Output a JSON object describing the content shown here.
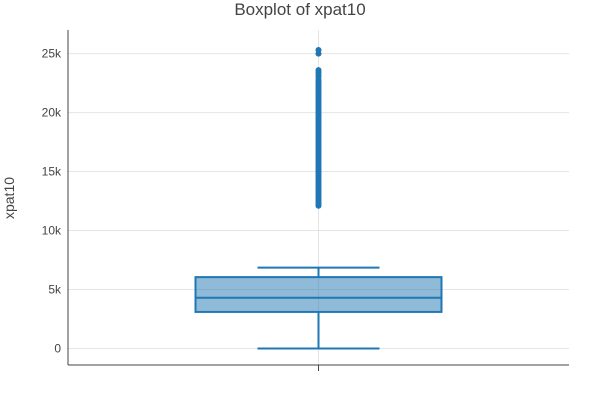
{
  "chart_data": {
    "type": "box",
    "title": "Boxplot of xpat10",
    "xlabel": "",
    "ylabel": "xpat10",
    "ylim": [
      -1400,
      27000
    ],
    "ytick_values": [
      0,
      5000,
      10000,
      15000,
      20000,
      25000
    ],
    "ytick_labels": [
      "0",
      "5k",
      "10k",
      "15k",
      "20k",
      "25k"
    ],
    "grid": true,
    "series": [
      {
        "box": {
          "min": 0,
          "q1": 3100,
          "median": 4300,
          "q3": 6050,
          "max": 6850
        },
        "outliers": [
          12100,
          12250,
          12400,
          12550,
          12700,
          12850,
          13000,
          13150,
          13300,
          13450,
          13600,
          13750,
          13900,
          14050,
          14200,
          14350,
          14500,
          14650,
          14800,
          14950,
          15100,
          15250,
          15400,
          15550,
          15700,
          15850,
          16000,
          16150,
          16300,
          16450,
          16600,
          16750,
          16900,
          17050,
          17200,
          17350,
          17500,
          17650,
          17800,
          17950,
          18100,
          18250,
          18400,
          18550,
          18700,
          18850,
          19000,
          19150,
          19300,
          19450,
          19600,
          19750,
          19900,
          20050,
          20200,
          20350,
          20500,
          20650,
          20800,
          20950,
          21100,
          21250,
          21400,
          21550,
          21700,
          21850,
          22000,
          22150,
          22300,
          22450,
          22600,
          22750,
          23000,
          23200,
          23400,
          23600,
          25000,
          25300
        ]
      }
    ],
    "colors": {
      "line": "#1f77b4",
      "fill": "#1f77b4",
      "fill_opacity": 0.5,
      "grid": "#e5e5e5",
      "axis": "#444444"
    }
  }
}
